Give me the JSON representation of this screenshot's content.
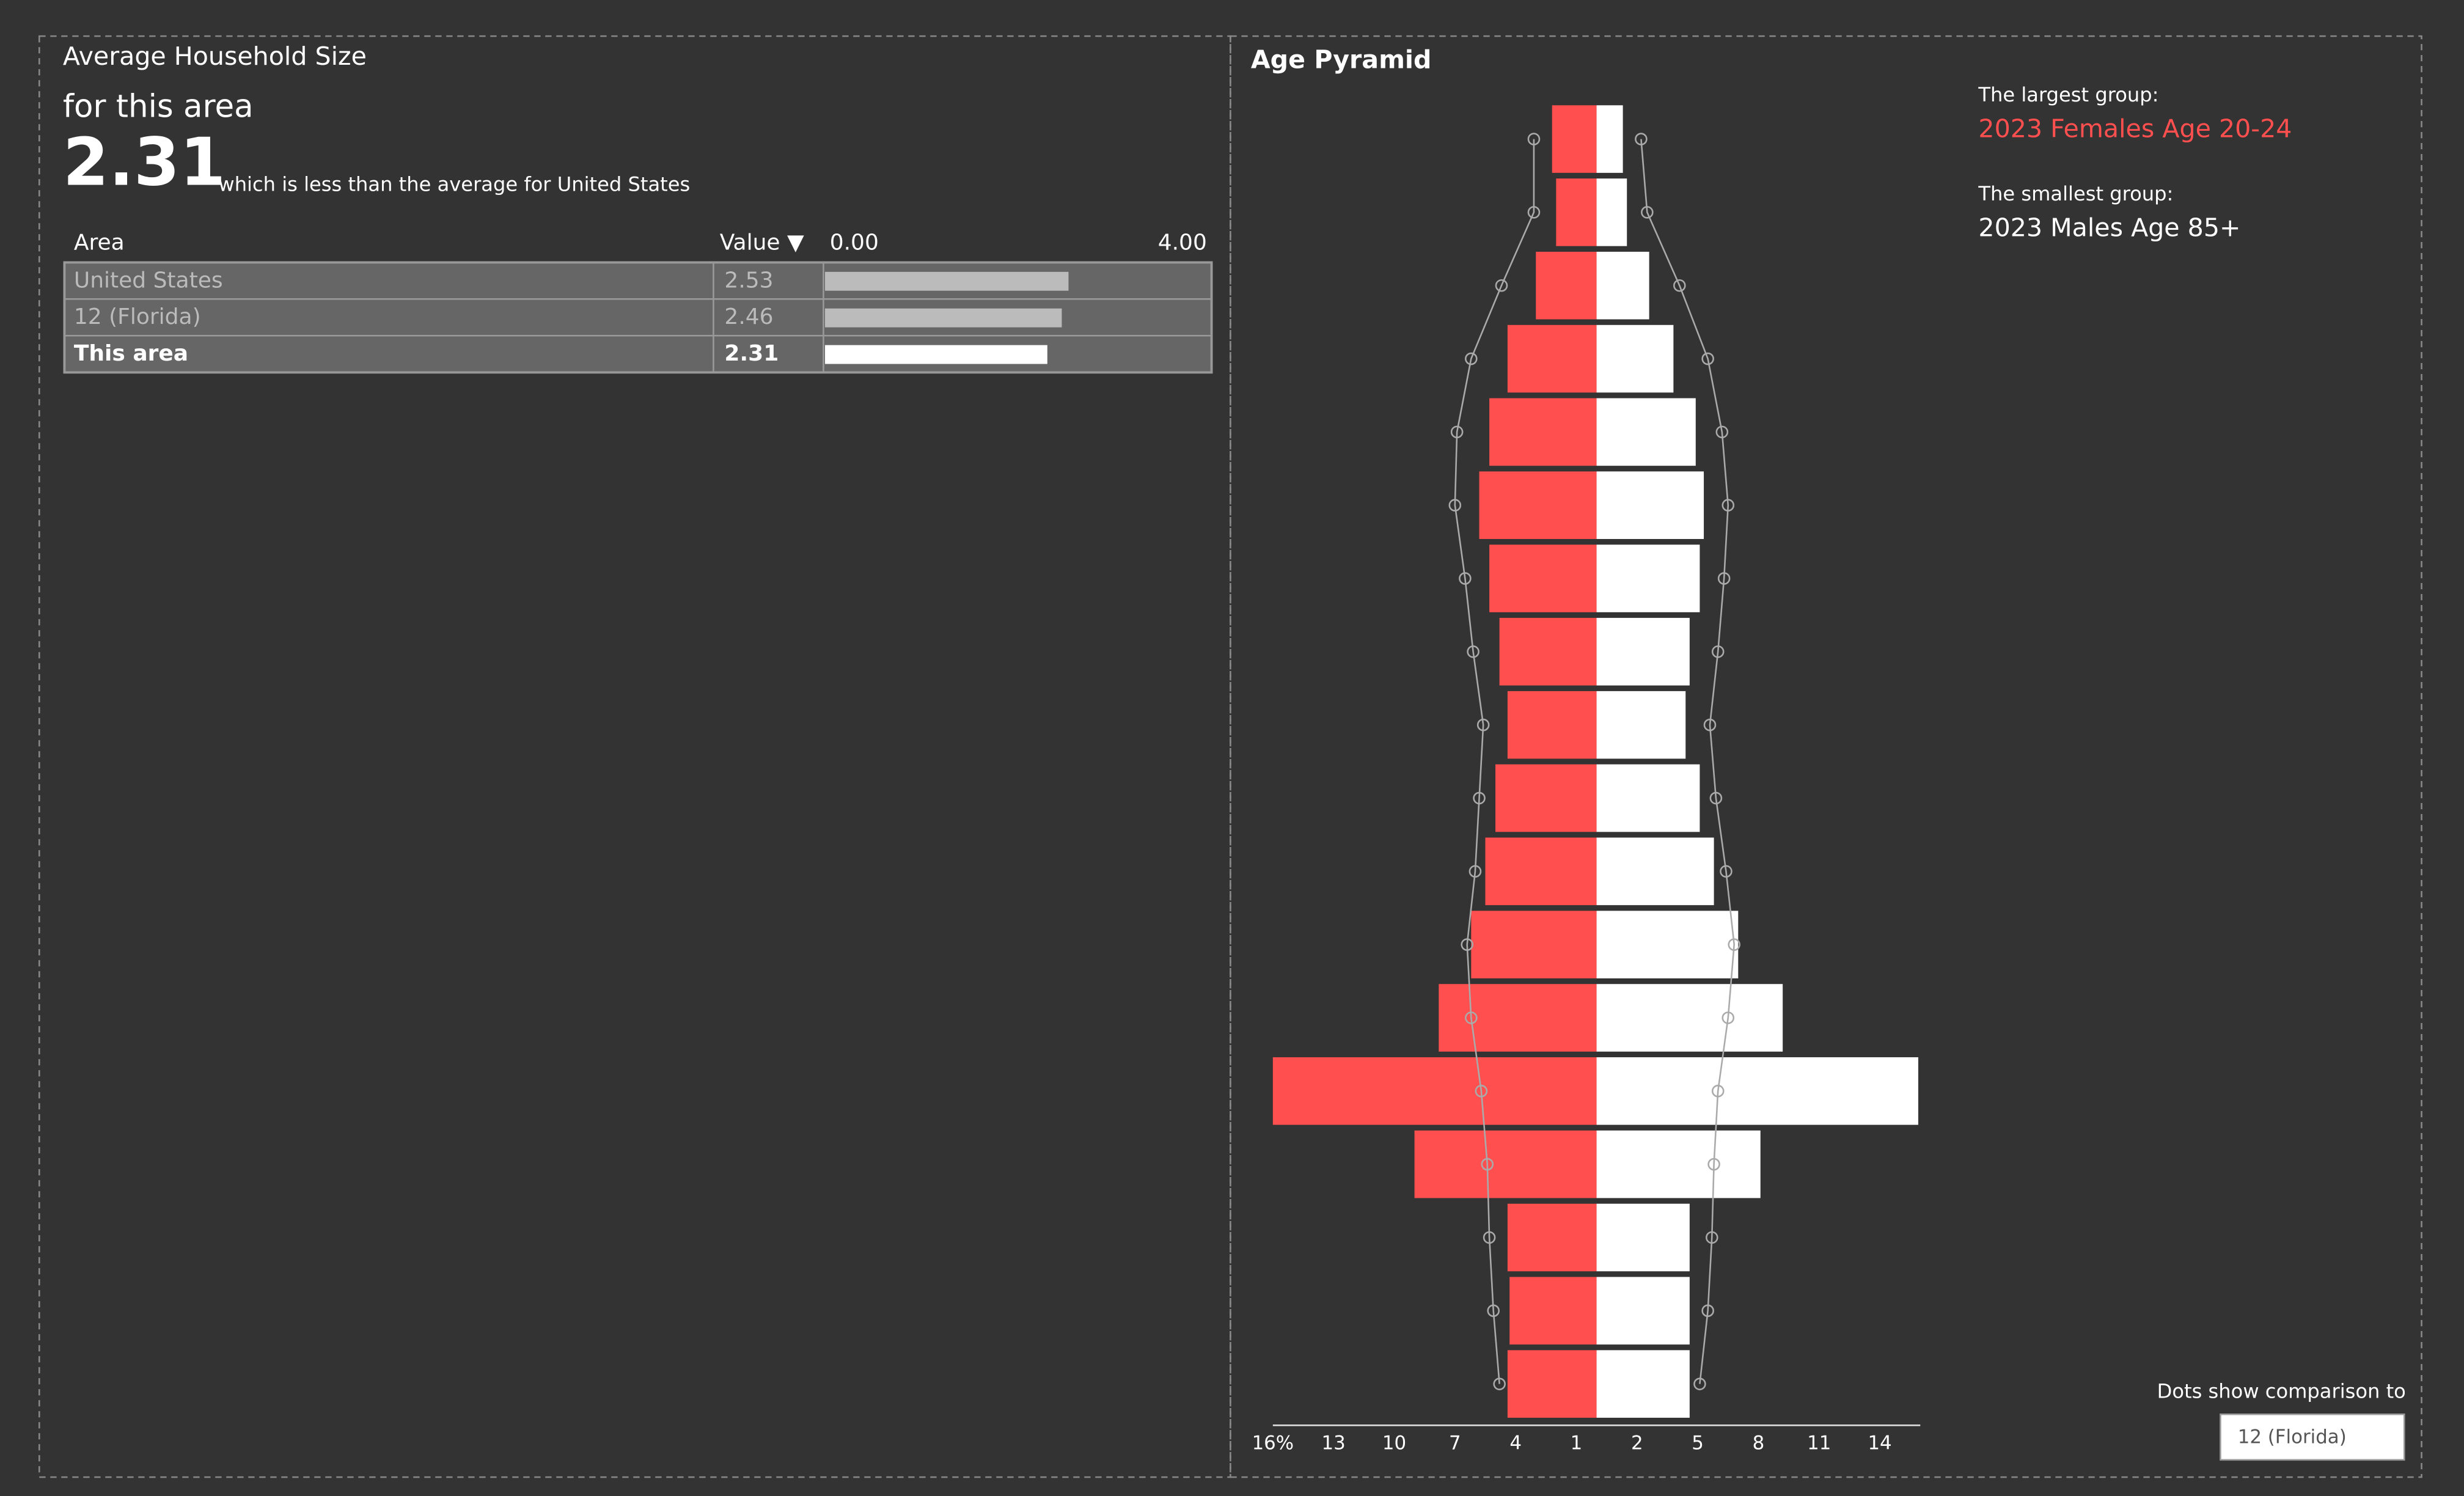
{
  "household": {
    "title": "Average Household Size",
    "subtitle": "for this area",
    "value": 2.31,
    "comparison": "which is less than the average for United States",
    "table": {
      "headers": [
        "Area",
        "Value ▼"
      ],
      "axis": [
        {
          "value": 0,
          "label": "0.00"
        },
        {
          "value": 4,
          "label": "4.00"
        }
      ],
      "rows": [
        {
          "area": "United States",
          "value": 2.53
        },
        {
          "area": "12 (Florida)",
          "value": 2.46
        },
        {
          "area": "This area",
          "value": 2.31
        }
      ]
    }
  },
  "chart_data": {
    "type": "pyramid",
    "title": "Age Pyramid",
    "xlim": [
      -16,
      16
    ],
    "xticks": [
      {
        "value": -16,
        "label": "16%"
      },
      {
        "value": -13,
        "label": "13"
      },
      {
        "value": -10,
        "label": "10"
      },
      {
        "value": -7,
        "label": "7"
      },
      {
        "value": -4,
        "label": "4"
      },
      {
        "value": -1,
        "label": "1"
      },
      2,
      5,
      8,
      11,
      14
    ],
    "series": [
      {
        "color": "#ff4f4f",
        "values": [
          -2.2,
          -2.0,
          -3.0,
          -4.4,
          -5.3,
          -5.8,
          -5.3,
          -4.8,
          -4.4,
          -5.0,
          -5.5,
          -6.2,
          -7.8,
          -16.0,
          -9.0,
          -4.4,
          -4.3,
          -4.4
        ]
      },
      {
        "color": "#ffffff",
        "values": [
          1.3,
          1.5,
          2.6,
          3.8,
          4.9,
          5.3,
          5.1,
          4.6,
          4.4,
          5.1,
          5.8,
          7.0,
          9.2,
          15.9,
          8.1,
          4.6,
          4.6,
          4.6
        ]
      },
      {
        "color": "#aaaaaa",
        "values": [
          -3.1,
          -3.1,
          -4.7,
          -6.2,
          -6.9,
          -7.0,
          -6.5,
          -6.1,
          -5.6,
          -5.8,
          -6.0,
          -6.4,
          -6.2,
          -5.7,
          -5.4,
          -5.3,
          -5.1,
          -4.8
        ]
      },
      {
        "color": "#aaaaaa",
        "values": [
          2.2,
          2.5,
          4.1,
          5.5,
          6.2,
          6.5,
          6.3,
          6.0,
          5.6,
          5.9,
          6.4,
          6.8,
          6.5,
          6.0,
          5.8,
          5.7,
          5.5,
          5.1
        ]
      }
    ]
  },
  "sidebar": {
    "largest_label": "The largest group:",
    "largest": "2023 Females Age 20-24",
    "smallest_label": "The smallest group:",
    "smallest": "2023 Males Age 85+",
    "comparison_label": "Dots show comparison to",
    "comparison_select": "12 (Florida)"
  }
}
